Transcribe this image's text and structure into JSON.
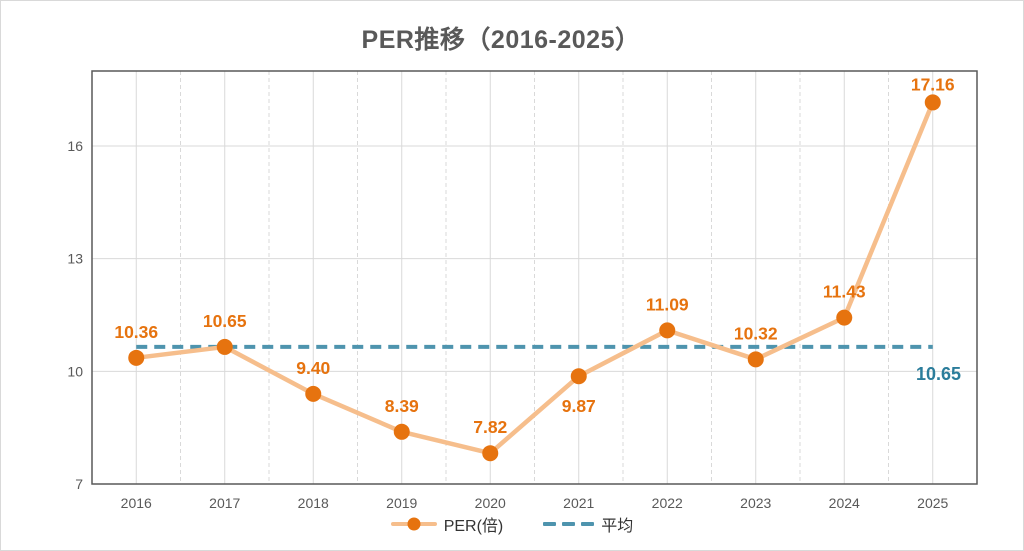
{
  "title": "PER推移（2016-2025）",
  "legend": {
    "series_label": "PER(倍)",
    "average_label": "平均"
  },
  "chart_data": {
    "type": "line",
    "title": "PER推移（2016-2025）",
    "categories": [
      "2016",
      "2017",
      "2018",
      "2019",
      "2020",
      "2021",
      "2022",
      "2023",
      "2024",
      "2025"
    ],
    "series": [
      {
        "name": "PER(倍)",
        "values": [
          10.36,
          10.65,
          9.4,
          8.39,
          7.82,
          9.87,
          11.09,
          10.32,
          11.43,
          17.16
        ]
      }
    ],
    "data_labels": [
      "10.36",
      "10.65",
      "9.40",
      "8.39",
      "7.82",
      "9.87",
      "11.09",
      "10.32",
      "11.43",
      "17.16"
    ],
    "average": {
      "name": "平均",
      "value": 10.65,
      "label": "10.65"
    },
    "xlabel": "",
    "ylabel": "",
    "y_ticks": [
      7,
      10,
      13,
      16
    ],
    "ylim": [
      7,
      18
    ],
    "grid": "major-solid, minor-vertical-dashed",
    "legend_position": "bottom",
    "colors": {
      "series_line": "#f6be8c",
      "series_marker": "#e6730f",
      "data_label": "#e6730f",
      "average_line": "#4e94ae",
      "average_label_text": "#2b7d9b",
      "axis_text": "#595959",
      "title_text": "#595959",
      "gridline": "#d9d9d9",
      "plot_border": "#595959",
      "legend_text": "#333333"
    }
  }
}
